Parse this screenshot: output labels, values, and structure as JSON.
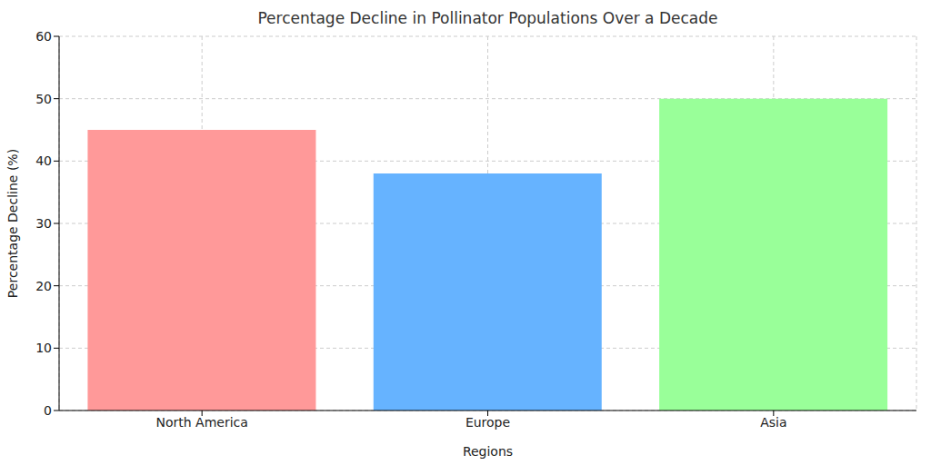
{
  "chart_data": {
    "type": "bar",
    "title": "Percentage Decline in Pollinator Populations Over a Decade",
    "x_label": "Regions",
    "y_label": "Percentage Decline (%)",
    "categories": [
      "North America",
      "Europe",
      "Asia"
    ],
    "values": [
      45,
      38,
      50
    ],
    "colors": [
      "#ff9999",
      "#66b3ff",
      "#99ff99"
    ],
    "ylim": [
      0,
      60
    ],
    "yticks": [
      0,
      10,
      20,
      30,
      40,
      50,
      60
    ],
    "grid": true
  }
}
